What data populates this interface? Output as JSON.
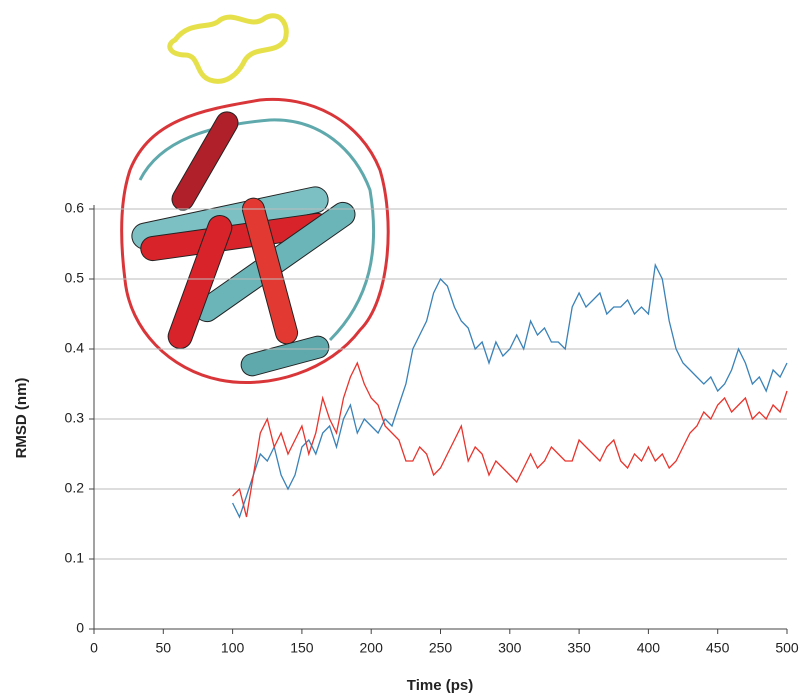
{
  "chart_data": {
    "type": "line",
    "x_label": "Time (ps)",
    "y_label": "RMSD (nm)",
    "x": [
      100,
      105,
      110,
      115,
      120,
      125,
      130,
      135,
      140,
      145,
      150,
      155,
      160,
      165,
      170,
      175,
      180,
      185,
      190,
      195,
      200,
      205,
      210,
      215,
      220,
      225,
      230,
      235,
      240,
      245,
      250,
      255,
      260,
      265,
      270,
      275,
      280,
      285,
      290,
      295,
      300,
      305,
      310,
      315,
      320,
      325,
      330,
      335,
      340,
      345,
      350,
      355,
      360,
      365,
      370,
      375,
      380,
      385,
      390,
      395,
      400,
      405,
      410,
      415,
      420,
      425,
      430,
      435,
      440,
      445,
      450,
      455,
      460,
      465,
      470,
      475,
      480,
      485,
      490,
      495,
      500
    ],
    "series": [
      {
        "color": "#3a82b8",
        "values": [
          0.18,
          0.16,
          0.19,
          0.22,
          0.25,
          0.24,
          0.26,
          0.22,
          0.2,
          0.22,
          0.26,
          0.27,
          0.25,
          0.28,
          0.29,
          0.26,
          0.3,
          0.32,
          0.28,
          0.3,
          0.29,
          0.28,
          0.3,
          0.29,
          0.32,
          0.35,
          0.4,
          0.42,
          0.44,
          0.48,
          0.5,
          0.49,
          0.46,
          0.44,
          0.43,
          0.4,
          0.41,
          0.38,
          0.41,
          0.39,
          0.4,
          0.42,
          0.4,
          0.44,
          0.42,
          0.43,
          0.41,
          0.41,
          0.4,
          0.46,
          0.48,
          0.46,
          0.47,
          0.48,
          0.45,
          0.46,
          0.46,
          0.47,
          0.45,
          0.46,
          0.45,
          0.52,
          0.5,
          0.44,
          0.4,
          0.38,
          0.37,
          0.36,
          0.35,
          0.36,
          0.34,
          0.35,
          0.37,
          0.4,
          0.38,
          0.35,
          0.36,
          0.34,
          0.37,
          0.36,
          0.38
        ]
      },
      {
        "color": "#e8342c",
        "values": [
          0.19,
          0.2,
          0.16,
          0.22,
          0.28,
          0.3,
          0.26,
          0.28,
          0.25,
          0.27,
          0.29,
          0.25,
          0.28,
          0.33,
          0.3,
          0.28,
          0.33,
          0.36,
          0.38,
          0.35,
          0.33,
          0.32,
          0.29,
          0.28,
          0.27,
          0.24,
          0.24,
          0.26,
          0.25,
          0.22,
          0.23,
          0.25,
          0.27,
          0.29,
          0.24,
          0.26,
          0.25,
          0.22,
          0.24,
          0.23,
          0.22,
          0.21,
          0.23,
          0.25,
          0.23,
          0.24,
          0.26,
          0.25,
          0.24,
          0.24,
          0.27,
          0.26,
          0.25,
          0.24,
          0.26,
          0.27,
          0.24,
          0.23,
          0.25,
          0.24,
          0.26,
          0.24,
          0.25,
          0.23,
          0.24,
          0.26,
          0.28,
          0.29,
          0.31,
          0.3,
          0.32,
          0.33,
          0.31,
          0.32,
          0.33,
          0.3,
          0.31,
          0.3,
          0.32,
          0.31,
          0.34
        ]
      }
    ],
    "xlim": [
      0,
      500
    ],
    "xticks": [
      0,
      50,
      100,
      150,
      200,
      250,
      300,
      350,
      400,
      450,
      500
    ],
    "ylim": [
      0,
      0.6
    ],
    "yticks": [
      0,
      0.1,
      0.2,
      0.3,
      0.4,
      0.5,
      0.6
    ],
    "grid": true
  }
}
